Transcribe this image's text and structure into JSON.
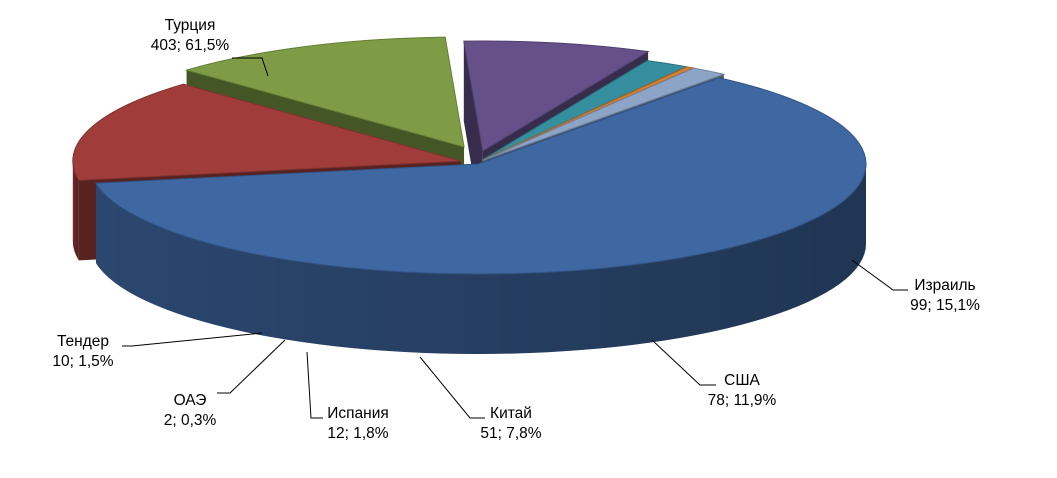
{
  "chart_data": {
    "type": "pie",
    "title": "",
    "slices": [
      {
        "label": "Турция",
        "value": 403,
        "percent": "61,5%",
        "text": "403; 61,5%",
        "color": "#3F68A3"
      },
      {
        "label": "Израиль",
        "value": 99,
        "percent": "15,1%",
        "text": "99; 15,1%",
        "color": "#A03D3B"
      },
      {
        "label": "США",
        "value": 78,
        "percent": "11,9%",
        "text": "78; 11,9%",
        "color": "#7E9C45"
      },
      {
        "label": "Китай",
        "value": 51,
        "percent": "7,8%",
        "text": "51; 7,8%",
        "color": "#66508A"
      },
      {
        "label": "Испания",
        "value": 12,
        "percent": "1,8%",
        "text": "12; 1,8%",
        "color": "#358F9F"
      },
      {
        "label": "ОАЭ",
        "value": 2,
        "percent": "0,3%",
        "text": "2; 0,3%",
        "color": "#DB7E2E"
      },
      {
        "label": "Тендер",
        "value": 10,
        "percent": "1,5%",
        "text": "10; 1,5%",
        "color": "#8CA4C6"
      }
    ]
  }
}
